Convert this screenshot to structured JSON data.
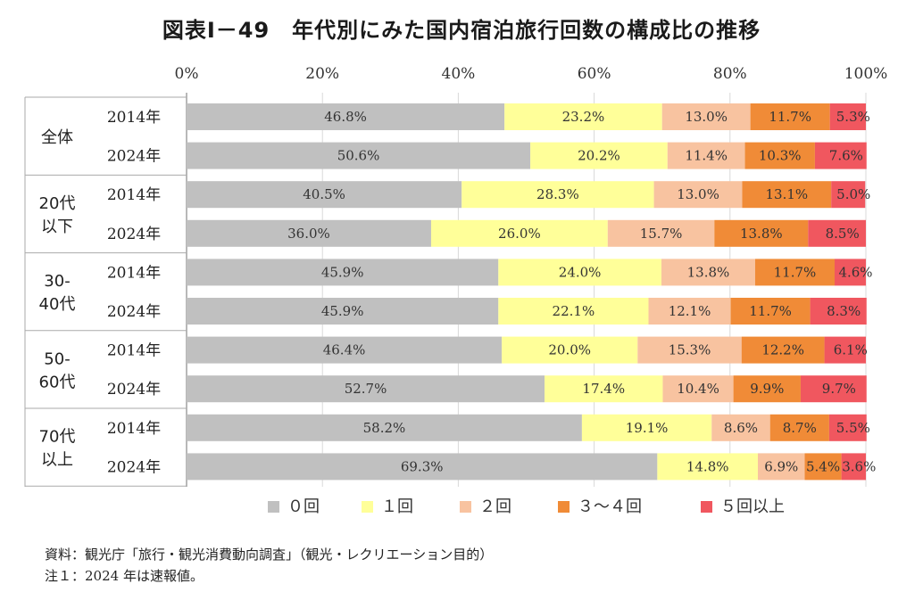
{
  "chart_data": {
    "type": "bar",
    "orientation": "horizontal-stacked-percent",
    "title": "図表Ⅰ－49　年代別にみた国内宿泊旅行回数の構成比の推移",
    "xlim": [
      0,
      100
    ],
    "x_ticks": [
      "0%",
      "20%",
      "40%",
      "60%",
      "80%",
      "100%"
    ],
    "groups": [
      {
        "label": [
          "全体"
        ],
        "rows": [
          {
            "year": "2014年",
            "values": [
              46.8,
              23.2,
              13.0,
              11.7,
              5.3
            ],
            "labels": [
              "46.8%",
              "23.2%",
              "13.0%",
              "11.7%",
              "5.3%"
            ]
          },
          {
            "year": "2024年",
            "values": [
              50.6,
              20.2,
              11.4,
              10.3,
              7.6
            ],
            "labels": [
              "50.6%",
              "20.2%",
              "11.4%",
              "10.3%",
              "7.6%"
            ]
          }
        ]
      },
      {
        "label": [
          "20代",
          "以下"
        ],
        "rows": [
          {
            "year": "2014年",
            "values": [
              40.5,
              28.3,
              13.0,
              13.1,
              5.0
            ],
            "labels": [
              "40.5%",
              "28.3%",
              "13.0%",
              "13.1%",
              "5.0%"
            ]
          },
          {
            "year": "2024年",
            "values": [
              36.0,
              26.0,
              15.7,
              13.8,
              8.5
            ],
            "labels": [
              "36.0%",
              "26.0%",
              "15.7%",
              "13.8%",
              "8.5%"
            ]
          }
        ]
      },
      {
        "label": [
          "30-",
          "40代"
        ],
        "rows": [
          {
            "year": "2014年",
            "values": [
              45.9,
              24.0,
              13.8,
              11.7,
              4.6
            ],
            "labels": [
              "45.9%",
              "24.0%",
              "13.8%",
              "11.7%",
              "4.6%"
            ]
          },
          {
            "year": "2024年",
            "values": [
              45.9,
              22.1,
              12.1,
              11.7,
              8.3
            ],
            "labels": [
              "45.9%",
              "22.1%",
              "12.1%",
              "11.7%",
              "8.3%"
            ]
          }
        ]
      },
      {
        "label": [
          "50-",
          "60代"
        ],
        "rows": [
          {
            "year": "2014年",
            "values": [
              46.4,
              20.0,
              15.3,
              12.2,
              6.1
            ],
            "labels": [
              "46.4%",
              "20.0%",
              "15.3%",
              "12.2%",
              "6.1%"
            ]
          },
          {
            "year": "2024年",
            "values": [
              52.7,
              17.4,
              10.4,
              9.9,
              9.7
            ],
            "labels": [
              "52.7%",
              "17.4%",
              "10.4%",
              "9.9%",
              "9.7%"
            ]
          }
        ]
      },
      {
        "label": [
          "70代",
          "以上"
        ],
        "rows": [
          {
            "year": "2014年",
            "values": [
              58.2,
              19.1,
              8.6,
              8.7,
              5.5
            ],
            "labels": [
              "58.2%",
              "19.1%",
              "8.6%",
              "8.7%",
              "5.5%"
            ]
          },
          {
            "year": "2024年",
            "values": [
              69.3,
              14.8,
              6.9,
              5.4,
              3.6
            ],
            "labels": [
              "69.3%",
              "14.8%",
              "6.9%",
              "5.4%",
              "3.6%"
            ]
          }
        ]
      }
    ],
    "series": [
      {
        "name": "０回",
        "color": "#c0c0c0"
      },
      {
        "name": "１回",
        "color": "#ffff99"
      },
      {
        "name": "２回",
        "color": "#f8c3a0"
      },
      {
        "name": "３～４回",
        "color": "#f08b37"
      },
      {
        "name": "５回以上",
        "color": "#f0575f"
      }
    ],
    "legend_position": "bottom"
  },
  "notes": {
    "source": "資料：観光庁「旅行・観光消費動向調査」（観光・レクリエーション目的）",
    "note1": "注１：2024 年は速報値。"
  }
}
